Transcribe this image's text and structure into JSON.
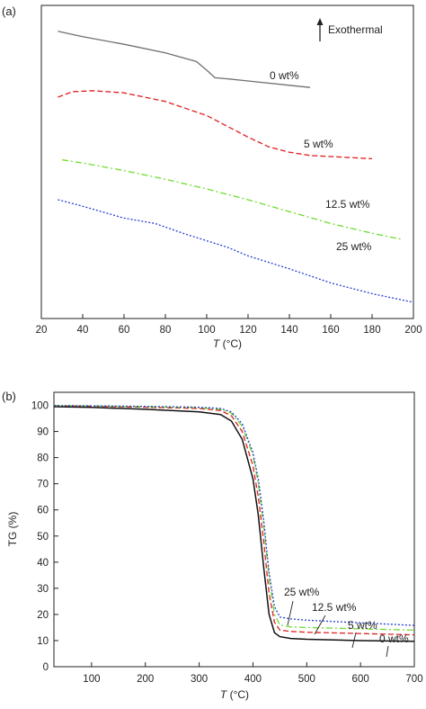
{
  "chart_data": [
    {
      "type": "line",
      "panel_label": "(a)",
      "xlabel_italic": "T",
      "xlabel_unit": " (°C)",
      "ylabel": "",
      "xlim": [
        20,
        200
      ],
      "xticks": [
        20,
        40,
        60,
        80,
        100,
        120,
        140,
        160,
        180,
        200
      ],
      "y_ticks_shown": false,
      "legend_note": "Exothermal",
      "legend_note_arrow": "up",
      "series": [
        {
          "name": "0 wt%",
          "color": "#707070",
          "dash": "solid",
          "x": [
            28,
            40,
            60,
            80,
            95,
            100,
            104,
            110,
            120,
            140,
            150
          ],
          "y": [
            7.8,
            7.55,
            7.2,
            6.8,
            6.4,
            6.0,
            5.65,
            5.6,
            5.5,
            5.3,
            5.2
          ]
        },
        {
          "name": "5 wt%",
          "color": "#e02020",
          "dash": "dashed",
          "x": [
            28,
            35,
            45,
            60,
            80,
            100,
            120,
            130,
            140,
            150,
            160,
            170,
            180
          ],
          "y": [
            4.75,
            5.0,
            5.05,
            4.95,
            4.55,
            3.9,
            2.9,
            2.45,
            2.2,
            2.05,
            2.0,
            1.95,
            1.9
          ]
        },
        {
          "name": "12.5 wt%",
          "color": "#6fdc30",
          "dash": "dashdot",
          "x": [
            30,
            40,
            60,
            80,
            100,
            120,
            140,
            160,
            180,
            195
          ],
          "y": [
            1.85,
            1.7,
            1.35,
            0.95,
            0.5,
            0.0,
            -0.55,
            -1.1,
            -1.55,
            -1.85
          ]
        },
        {
          "name": "25 wt%",
          "color": "#2840d0",
          "dash": "dotted",
          "x": [
            28,
            40,
            60,
            75,
            90,
            100,
            110,
            120,
            140,
            160,
            180,
            200
          ],
          "y": [
            0.0,
            -0.3,
            -0.85,
            -1.1,
            -1.6,
            -1.9,
            -2.2,
            -2.6,
            -3.2,
            -3.85,
            -4.35,
            -4.75
          ]
        }
      ],
      "labels": [
        {
          "series": 0,
          "text": "0 wt%"
        },
        {
          "series": 1,
          "text": "5 wt%"
        },
        {
          "series": 2,
          "text": "12.5 wt%"
        },
        {
          "series": 3,
          "text": "25 wt%"
        }
      ]
    },
    {
      "type": "line",
      "panel_label": "(b)",
      "xlabel_italic": "T",
      "xlabel_unit": " (°C)",
      "ylabel": "TG (%)",
      "xlim": [
        30,
        700
      ],
      "ylim": [
        0,
        105
      ],
      "xticks": [
        100,
        200,
        300,
        400,
        500,
        600,
        700
      ],
      "yticks": [
        0,
        10,
        20,
        30,
        40,
        50,
        60,
        70,
        80,
        90,
        100
      ],
      "series": [
        {
          "name": "0 wt%",
          "color": "#111111",
          "dash": "solid",
          "x": [
            30,
            100,
            200,
            300,
            340,
            360,
            380,
            400,
            410,
            420,
            430,
            440,
            450,
            470,
            500,
            600,
            700
          ],
          "y": [
            99.5,
            99.2,
            98.5,
            97.5,
            96.5,
            94,
            87,
            72,
            58,
            38,
            20,
            13,
            11.5,
            10.8,
            10.5,
            10.0,
            9.7
          ]
        },
        {
          "name": "5 wt%",
          "color": "#e02020",
          "dash": "dashed",
          "x": [
            30,
            100,
            200,
            300,
            340,
            360,
            380,
            400,
            410,
            420,
            430,
            440,
            450,
            470,
            500,
            600,
            700
          ],
          "y": [
            99.8,
            99.7,
            99.3,
            98.8,
            98.0,
            96,
            90,
            77,
            65,
            48,
            28,
            17,
            14,
            13.5,
            13.2,
            12.7,
            12.2
          ]
        },
        {
          "name": "12.5 wt%",
          "color": "#6fdc30",
          "dash": "dashdot",
          "x": [
            30,
            100,
            200,
            300,
            340,
            360,
            380,
            400,
            410,
            420,
            430,
            440,
            450,
            470,
            500,
            600,
            700
          ],
          "y": [
            99.9,
            99.8,
            99.5,
            99.1,
            98.5,
            97,
            92,
            81,
            70,
            54,
            34,
            20,
            16,
            15.2,
            15.0,
            14.5,
            14.0
          ]
        },
        {
          "name": "25 wt%",
          "color": "#2840d0",
          "dash": "dotted",
          "x": [
            30,
            100,
            200,
            300,
            340,
            360,
            380,
            400,
            410,
            420,
            430,
            440,
            450,
            470,
            500,
            600,
            700
          ],
          "y": [
            99.9,
            99.8,
            99.6,
            99.3,
            98.8,
            97.5,
            93,
            82,
            72,
            56,
            36,
            23,
            19,
            18.3,
            17.8,
            16.8,
            15.8
          ]
        }
      ],
      "annotations": [
        {
          "series": 3,
          "text": "25 wt%"
        },
        {
          "series": 2,
          "text": "12.5 wt%"
        },
        {
          "series": 1,
          "text": "5 wt%"
        },
        {
          "series": 0,
          "text": "0 wt%"
        }
      ]
    }
  ]
}
